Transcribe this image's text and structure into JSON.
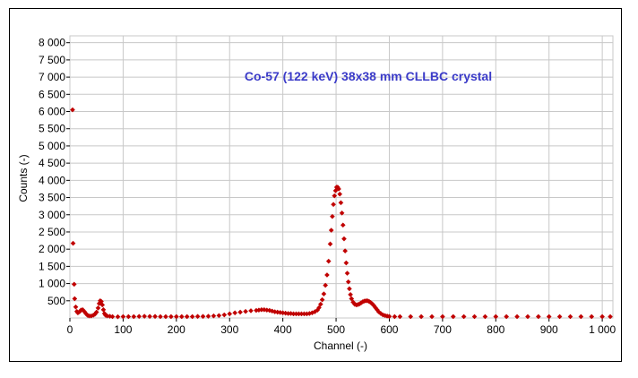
{
  "chart_data": {
    "type": "scatter",
    "title": "Co-57 (122 keV) 38x38 mm CLLBC crystal",
    "xlabel": "Channel (-)",
    "ylabel": "Counts (-)",
    "xlim": [
      0,
      1020
    ],
    "ylim": [
      0,
      8200
    ],
    "x_ticks": [
      0,
      100,
      200,
      300,
      400,
      500,
      600,
      700,
      800,
      900,
      1000
    ],
    "x_tick_labels": [
      "0",
      "100",
      "200",
      "300",
      "400",
      "500",
      "600",
      "700",
      "800",
      "900",
      "1 000"
    ],
    "y_ticks": [
      500,
      1000,
      1500,
      2000,
      2500,
      3000,
      3500,
      4000,
      4500,
      5000,
      5500,
      6000,
      6500,
      7000,
      7500,
      8000
    ],
    "y_tick_labels": [
      "500",
      "1 000",
      "1 500",
      "2 000",
      "2 500",
      "3 000",
      "3 500",
      "4 000",
      "4 500",
      "5 000",
      "5 500",
      "6 000",
      "6 500",
      "7 000",
      "7 500",
      "8 000"
    ],
    "grid": true,
    "legend": "none",
    "marker": "diamond",
    "series": [
      {
        "color": "#c00000",
        "points": [
          [
            5,
            6050
          ],
          [
            6,
            2170
          ],
          [
            8,
            980
          ],
          [
            9,
            560
          ],
          [
            11,
            320
          ],
          [
            13,
            190
          ],
          [
            15,
            150
          ],
          [
            18,
            180
          ],
          [
            21,
            230
          ],
          [
            24,
            240
          ],
          [
            27,
            190
          ],
          [
            30,
            130
          ],
          [
            33,
            80
          ],
          [
            36,
            60
          ],
          [
            40,
            60
          ],
          [
            44,
            80
          ],
          [
            47,
            110
          ],
          [
            50,
            170
          ],
          [
            53,
            290
          ],
          [
            55,
            420
          ],
          [
            57,
            500
          ],
          [
            59,
            480
          ],
          [
            61,
            380
          ],
          [
            63,
            240
          ],
          [
            65,
            130
          ],
          [
            67,
            80
          ],
          [
            70,
            60
          ],
          [
            75,
            50
          ],
          [
            80,
            40
          ],
          [
            90,
            35
          ],
          [
            100,
            40
          ],
          [
            110,
            40
          ],
          [
            120,
            40
          ],
          [
            130,
            45
          ],
          [
            140,
            50
          ],
          [
            150,
            45
          ],
          [
            160,
            45
          ],
          [
            170,
            40
          ],
          [
            180,
            40
          ],
          [
            190,
            40
          ],
          [
            200,
            40
          ],
          [
            210,
            40
          ],
          [
            220,
            40
          ],
          [
            230,
            40
          ],
          [
            240,
            45
          ],
          [
            250,
            45
          ],
          [
            260,
            50
          ],
          [
            270,
            60
          ],
          [
            280,
            70
          ],
          [
            290,
            90
          ],
          [
            300,
            120
          ],
          [
            310,
            150
          ],
          [
            320,
            170
          ],
          [
            330,
            190
          ],
          [
            340,
            210
          ],
          [
            350,
            220
          ],
          [
            355,
            230
          ],
          [
            360,
            240
          ],
          [
            365,
            240
          ],
          [
            370,
            230
          ],
          [
            375,
            220
          ],
          [
            380,
            200
          ],
          [
            385,
            180
          ],
          [
            390,
            170
          ],
          [
            395,
            160
          ],
          [
            400,
            150
          ],
          [
            405,
            140
          ],
          [
            410,
            130
          ],
          [
            415,
            130
          ],
          [
            420,
            120
          ],
          [
            425,
            120
          ],
          [
            430,
            120
          ],
          [
            435,
            120
          ],
          [
            440,
            120
          ],
          [
            445,
            120
          ],
          [
            450,
            130
          ],
          [
            455,
            150
          ],
          [
            460,
            180
          ],
          [
            465,
            230
          ],
          [
            468,
            300
          ],
          [
            471,
            400
          ],
          [
            474,
            530
          ],
          [
            477,
            700
          ],
          [
            480,
            950
          ],
          [
            483,
            1250
          ],
          [
            486,
            1650
          ],
          [
            489,
            2150
          ],
          [
            491,
            2550
          ],
          [
            493,
            2950
          ],
          [
            495,
            3300
          ],
          [
            497,
            3550
          ],
          [
            499,
            3700
          ],
          [
            501,
            3800
          ],
          [
            503,
            3800
          ],
          [
            505,
            3750
          ],
          [
            507,
            3600
          ],
          [
            509,
            3350
          ],
          [
            511,
            3050
          ],
          [
            513,
            2700
          ],
          [
            515,
            2300
          ],
          [
            517,
            1950
          ],
          [
            519,
            1600
          ],
          [
            521,
            1300
          ],
          [
            523,
            1050
          ],
          [
            525,
            850
          ],
          [
            527,
            680
          ],
          [
            529,
            560
          ],
          [
            532,
            460
          ],
          [
            535,
            400
          ],
          [
            538,
            380
          ],
          [
            541,
            390
          ],
          [
            544,
            410
          ],
          [
            547,
            440
          ],
          [
            550,
            470
          ],
          [
            553,
            490
          ],
          [
            556,
            500
          ],
          [
            559,
            500
          ],
          [
            562,
            480
          ],
          [
            565,
            450
          ],
          [
            568,
            410
          ],
          [
            571,
            360
          ],
          [
            574,
            300
          ],
          [
            577,
            240
          ],
          [
            580,
            180
          ],
          [
            584,
            130
          ],
          [
            588,
            90
          ],
          [
            592,
            70
          ],
          [
            596,
            55
          ],
          [
            600,
            45
          ],
          [
            610,
            40
          ],
          [
            620,
            40
          ],
          [
            640,
            40
          ],
          [
            660,
            40
          ],
          [
            680,
            40
          ],
          [
            700,
            40
          ],
          [
            720,
            40
          ],
          [
            740,
            40
          ],
          [
            760,
            40
          ],
          [
            780,
            40
          ],
          [
            800,
            40
          ],
          [
            820,
            40
          ],
          [
            840,
            40
          ],
          [
            860,
            40
          ],
          [
            880,
            40
          ],
          [
            900,
            40
          ],
          [
            920,
            40
          ],
          [
            940,
            40
          ],
          [
            960,
            40
          ],
          [
            980,
            40
          ],
          [
            1000,
            40
          ],
          [
            1015,
            40
          ]
        ]
      }
    ]
  },
  "colors": {
    "title": "#3b3bc8",
    "marker": "#c00000",
    "grid": "#c8c8c8",
    "axis": "#000000"
  }
}
